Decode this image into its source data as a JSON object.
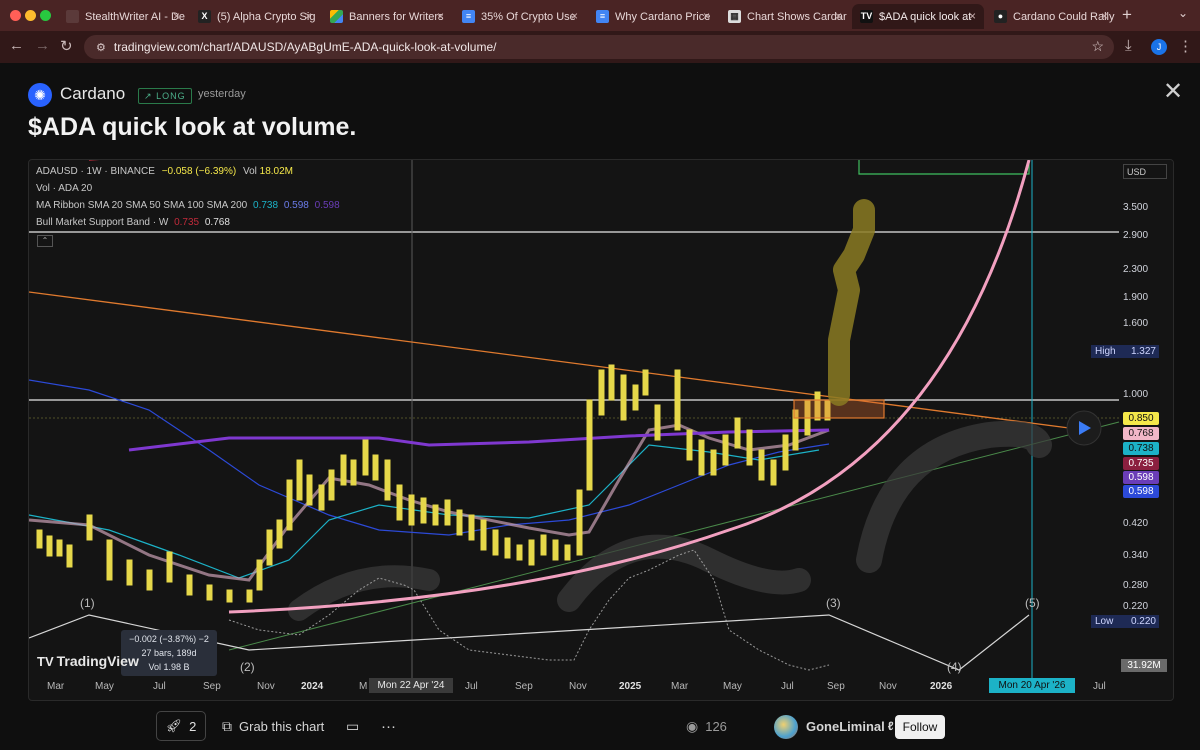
{
  "browser": {
    "tabs": [
      {
        "label": "StealthWriter AI - De",
        "icon": "stealthwriter-icon"
      },
      {
        "label": "(5) Alpha Crypto Sig",
        "icon": "x-icon"
      },
      {
        "label": "Banners for Writers",
        "icon": "drive-icon"
      },
      {
        "label": "35% Of Crypto Use",
        "icon": "docs-icon"
      },
      {
        "label": "Why Cardano Price",
        "icon": "docs-icon"
      },
      {
        "label": "Chart Shows Cardar",
        "icon": "image-icon"
      },
      {
        "label": "$ADA quick look at",
        "icon": "tradingview-icon"
      },
      {
        "label": "Cardano Could Rally",
        "icon": "coingecko-icon"
      }
    ],
    "url": "tradingview.com/chart/ADAUSD/AyABgUmE-ADA-quick-look-at-volume/",
    "profile_initial": "J"
  },
  "idea": {
    "symbol_name": "Cardano",
    "direction": "LONG",
    "posted": "yesterday",
    "title": "$ADA quick look at volume."
  },
  "chart": {
    "legend_line1": "ADAUSD · 1W · BINANCE",
    "legend_change": "−0.058 (−6.39%)",
    "legend_vol_label": "Vol",
    "legend_vol": "18.02M",
    "legend_line2": "Vol · ADA 20",
    "legend_line3": "MA Ribbon SMA 20 SMA 50 SMA 100 SMA 200",
    "ma_values": [
      "0.738",
      "0.598",
      "0.598"
    ],
    "legend_line4": "Bull Market Support Band · W",
    "bmsb_values": [
      "0.735",
      "0.768"
    ],
    "currency": "USD",
    "y_ticks": [
      "3.500",
      "2.900",
      "2.300",
      "1.900",
      "1.600",
      "1.000",
      "0.420",
      "0.340",
      "0.280",
      "0.220"
    ],
    "price_tags": [
      {
        "value": "0.850",
        "bg": "#f5e84a",
        "fg": "#111111"
      },
      {
        "value": "0.768",
        "bg": "#f2b7c8",
        "fg": "#111111"
      },
      {
        "value": "0.738",
        "bg": "#1cb2c7",
        "fg": "#111111"
      },
      {
        "value": "0.735",
        "bg": "#8b1f3f",
        "fg": "#ffffff"
      },
      {
        "value": "0.598",
        "bg": "#6a3db8",
        "fg": "#ffffff"
      },
      {
        "value": "0.598",
        "bg": "#2c4ad8",
        "fg": "#ffffff"
      }
    ],
    "high_label": "High",
    "high_value": "1.327",
    "low_label": "Low",
    "low_value": "0.220",
    "volume_value": "31.92M",
    "x_ticks": [
      "Mar",
      "May",
      "Jul",
      "Sep",
      "Nov",
      "2024",
      "M",
      "Jul",
      "Sep",
      "Nov",
      "2025",
      "Mar",
      "May",
      "Jul",
      "Sep",
      "Nov",
      "2026",
      "Jul"
    ],
    "crosshair_date_left": "Mon 22 Apr '24",
    "crosshair_date_right": "Mon 20 Apr '26",
    "wave_labels": [
      "(1)",
      "(2)",
      "(3)",
      "(4)",
      "(5)"
    ],
    "measure_line1": "−0.002 (−3.87%) −2",
    "measure_line2": "27 bars, 189d",
    "measure_line3": "Vol 1.98 B",
    "watermark": "TradingView"
  },
  "footer": {
    "boosts": "2",
    "grab_label": "Grab this chart",
    "views": "126",
    "author": "GoneLiminal",
    "follow_label": "Follow"
  }
}
